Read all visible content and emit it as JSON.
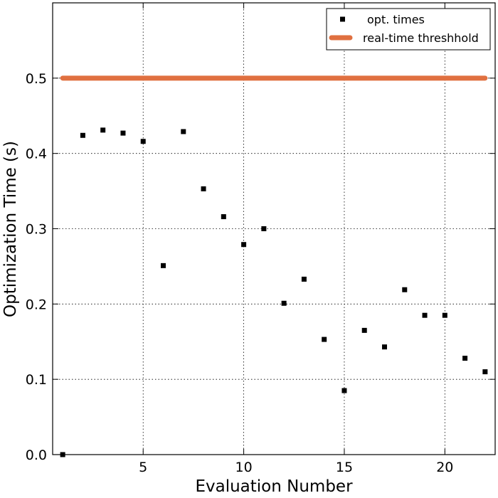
{
  "chart_data": {
    "type": "scatter",
    "xlabel": "Evaluation Number",
    "ylabel": "Optimization Time (s)",
    "xlim": [
      0.5,
      22.5
    ],
    "ylim": [
      0.0,
      0.6
    ],
    "xticks": [
      5,
      10,
      15,
      20
    ],
    "xtick_labels": [
      "5",
      "10",
      "15",
      "20"
    ],
    "yticks": [
      0.0,
      0.1,
      0.2,
      0.3,
      0.4,
      0.5
    ],
    "ytick_labels": [
      "0.0",
      "0.1",
      "0.2",
      "0.3",
      "0.4",
      "0.5"
    ],
    "grid": true,
    "legend_position": "top-right",
    "series": [
      {
        "name": "opt. times",
        "kind": "scatter",
        "marker": "square",
        "color": "#000000",
        "x": [
          1,
          2,
          3,
          4,
          5,
          6,
          7,
          8,
          9,
          10,
          11,
          12,
          13,
          14,
          15,
          16,
          17,
          18,
          19,
          20,
          21,
          22
        ],
        "y": [
          0.0,
          0.424,
          0.431,
          0.427,
          0.416,
          0.251,
          0.429,
          0.353,
          0.316,
          0.279,
          0.3,
          0.201,
          0.233,
          0.153,
          0.085,
          0.165,
          0.143,
          0.219,
          0.185,
          0.185,
          0.128,
          0.11
        ]
      },
      {
        "name": "real-time threshhold",
        "kind": "line",
        "color": "#e07040",
        "x": [
          1,
          22
        ],
        "y": [
          0.5,
          0.5
        ]
      }
    ]
  }
}
